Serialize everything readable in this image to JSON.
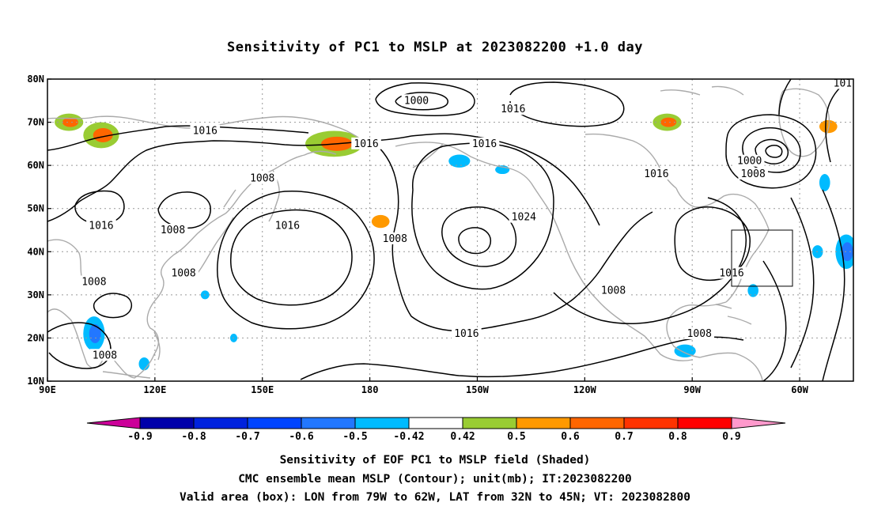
{
  "title": "Sensitivity of PC1 to MSLP at 2023082200 +1.0 day",
  "map": {
    "lon_ticks": [
      "90E",
      "120E",
      "150E",
      "180",
      "150W",
      "120W",
      "90W",
      "60W"
    ],
    "lat_ticks": [
      "10N",
      "20N",
      "30N",
      "40N",
      "50N",
      "60N",
      "70N",
      "80N"
    ],
    "lon_range_deg_east": [
      90,
      315
    ],
    "lat_range_deg": [
      10,
      80
    ],
    "grid": "dotted",
    "coastline_color": "#aaaaaa",
    "contour_color": "#000000",
    "contours": [
      {
        "label": "1000",
        "lon": 193,
        "lat": 75
      },
      {
        "label": "1016",
        "lon": 220,
        "lat": 73
      },
      {
        "label": "1016",
        "lon": 134,
        "lat": 68
      },
      {
        "label": "1016",
        "lon": 179,
        "lat": 65
      },
      {
        "label": "1016",
        "lon": 212,
        "lat": 65
      },
      {
        "label": "1000",
        "lon": 286,
        "lat": 61
      },
      {
        "label": "1008",
        "lon": 287,
        "lat": 58
      },
      {
        "label": "1016",
        "lon": 260,
        "lat": 58
      },
      {
        "label": "1008",
        "lon": 150,
        "lat": 57
      },
      {
        "label": "1024",
        "lon": 223,
        "lat": 48
      },
      {
        "label": "1016",
        "lon": 105,
        "lat": 46
      },
      {
        "label": "1008",
        "lon": 125,
        "lat": 45
      },
      {
        "label": "1016",
        "lon": 157,
        "lat": 46
      },
      {
        "label": "1008",
        "lon": 187,
        "lat": 43
      },
      {
        "label": "1008",
        "lon": 128,
        "lat": 35
      },
      {
        "label": "1008",
        "lon": 103,
        "lat": 33
      },
      {
        "label": "1016",
        "lon": 281,
        "lat": 35
      },
      {
        "label": "1008",
        "lon": 248,
        "lat": 31
      },
      {
        "label": "1016",
        "lon": 207,
        "lat": 21
      },
      {
        "label": "1008",
        "lon": 106,
        "lat": 16
      },
      {
        "label": "1008",
        "lon": 272,
        "lat": 21
      },
      {
        "label": "101",
        "lon": 312,
        "lat": 79
      }
    ],
    "positive_regions": [
      {
        "lon": 96,
        "lat": 70,
        "rx": 4,
        "ry": 2,
        "level": 0.6
      },
      {
        "lon": 105,
        "lat": 67,
        "rx": 5,
        "ry": 3,
        "level": 0.6
      },
      {
        "lon": 170,
        "lat": 65,
        "rx": 8,
        "ry": 3,
        "level": 0.6
      },
      {
        "lon": 183,
        "lat": 47,
        "rx": 2.5,
        "ry": 1.5,
        "level": 0.5
      },
      {
        "lon": 263,
        "lat": 70,
        "rx": 4,
        "ry": 2,
        "level": 0.6
      },
      {
        "lon": 308,
        "lat": 69,
        "rx": 2.5,
        "ry": 1.5,
        "level": 0.5
      }
    ],
    "negative_regions": [
      {
        "lon": 103,
        "lat": 21,
        "rx": 3,
        "ry": 4,
        "level": -0.6
      },
      {
        "lon": 117,
        "lat": 14,
        "rx": 1.5,
        "ry": 1.5,
        "level": -0.5
      },
      {
        "lon": 134,
        "lat": 30,
        "rx": 1.2,
        "ry": 1,
        "level": -0.5
      },
      {
        "lon": 142,
        "lat": 20,
        "rx": 1,
        "ry": 1,
        "level": -0.5
      },
      {
        "lon": 205,
        "lat": 61,
        "rx": 3,
        "ry": 1.5,
        "level": -0.5
      },
      {
        "lon": 217,
        "lat": 59,
        "rx": 2,
        "ry": 1,
        "level": -0.5
      },
      {
        "lon": 287,
        "lat": 31,
        "rx": 1.5,
        "ry": 1.5,
        "level": -0.5
      },
      {
        "lon": 268,
        "lat": 17,
        "rx": 3,
        "ry": 1.5,
        "level": -0.5
      },
      {
        "lon": 307,
        "lat": 56,
        "rx": 1.5,
        "ry": 2,
        "level": -0.5
      },
      {
        "lon": 313,
        "lat": 40,
        "rx": 3,
        "ry": 4,
        "level": -0.6
      },
      {
        "lon": 305,
        "lat": 40,
        "rx": 1.5,
        "ry": 1.5,
        "level": -0.5
      }
    ],
    "valid_box": {
      "lon": [
        281,
        298
      ],
      "lat": [
        32,
        45
      ]
    }
  },
  "colorbar": {
    "labels": [
      "-0.9",
      "-0.8",
      "-0.7",
      "-0.6",
      "-0.5",
      "-0.42",
      "0.42",
      "0.5",
      "0.6",
      "0.7",
      "0.8",
      "0.9"
    ],
    "colors": [
      "#0000aa",
      "#0022dd",
      "#0044ff",
      "#2277ff",
      "#00bbff",
      "#ffffff",
      "#99cc33",
      "#ff9900",
      "#ff6600",
      "#ff3300",
      "#ff0000"
    ],
    "left_arrow_color": "#cc0099",
    "right_arrow_color": "#ff99cc"
  },
  "footer": {
    "line1": "Sensitivity of EOF PC1 to MSLP field (Shaded)",
    "line2": "CMC ensemble mean MSLP (Contour); unit(mb); IT:2023082200",
    "line3": "Valid area (box): LON from 79W to 62W, LAT from 32N to 45N; VT: 2023082800"
  }
}
